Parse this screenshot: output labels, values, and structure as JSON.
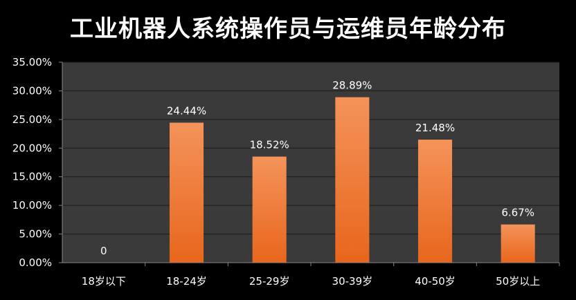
{
  "chart_data": {
    "type": "bar",
    "title": "工业机器人系统操作员与运维员年龄分布",
    "categories": [
      "18岁以下",
      "18-24岁",
      "25-29岁",
      "30-39岁",
      "40-50岁",
      "50岁以上"
    ],
    "values": [
      0,
      24.44,
      18.52,
      28.89,
      21.48,
      6.67
    ],
    "data_labels": [
      "0",
      "24.44%",
      "18.52%",
      "28.89%",
      "21.48%",
      "6.67%"
    ],
    "y_ticks": [
      "0.00%",
      "5.00%",
      "10.00%",
      "15.00%",
      "20.00%",
      "25.00%",
      "30.00%",
      "35.00%"
    ],
    "ylim": [
      0,
      35
    ],
    "xlabel": "",
    "ylabel": "",
    "grid": true,
    "legend": "none",
    "colors": {
      "background": "#000000",
      "plot_background": "#3a3a3a",
      "gridline": "#1a1a1a",
      "bar_top": "#f4935a",
      "bar_bottom": "#e8661c",
      "text": "#ffffff"
    }
  }
}
